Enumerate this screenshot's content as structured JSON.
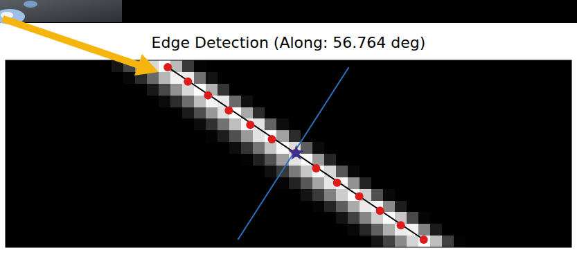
{
  "chart_data": {
    "type": "heatmap",
    "title": "Edge Detection (Along: 56.764 deg)",
    "color": "gray",
    "tick_labels": false,
    "xlim": [
      -0.5,
      47.5
    ],
    "ylim": [
      15.5,
      -0.5
    ],
    "values": [
      [
        4,
        4,
        4,
        4,
        4,
        4,
        4,
        4,
        4,
        12,
        30,
        57,
        85,
        100,
        74,
        26,
        5,
        4,
        4,
        4,
        4,
        4,
        4,
        4,
        4,
        4,
        4,
        4,
        4,
        4,
        4,
        4,
        4,
        4,
        4,
        4,
        4,
        4,
        4,
        4,
        4,
        4,
        4,
        4,
        4,
        4,
        4,
        4
      ],
      [
        4,
        4,
        4,
        4,
        4,
        4,
        4,
        4,
        4,
        4,
        7,
        20,
        43,
        73,
        95,
        93,
        47,
        11,
        4,
        4,
        4,
        4,
        4,
        4,
        4,
        4,
        4,
        4,
        4,
        4,
        4,
        4,
        4,
        4,
        4,
        4,
        4,
        4,
        4,
        4,
        4,
        4,
        4,
        4,
        4,
        4,
        4,
        4
      ],
      [
        4,
        4,
        4,
        4,
        4,
        4,
        4,
        4,
        4,
        4,
        4,
        4,
        13,
        31,
        59,
        86,
        100,
        71,
        24,
        4,
        4,
        4,
        4,
        4,
        4,
        4,
        4,
        4,
        4,
        4,
        4,
        4,
        4,
        4,
        4,
        4,
        4,
        4,
        4,
        4,
        4,
        4,
        4,
        4,
        4,
        4,
        4,
        4
      ],
      [
        4,
        4,
        4,
        4,
        4,
        4,
        4,
        4,
        4,
        4,
        4,
        4,
        4,
        8,
        21,
        45,
        75,
        96,
        92,
        44,
        10,
        4,
        4,
        4,
        4,
        4,
        4,
        4,
        4,
        4,
        4,
        4,
        4,
        4,
        4,
        4,
        4,
        4,
        4,
        4,
        4,
        4,
        4,
        4,
        4,
        4,
        4,
        4
      ],
      [
        4,
        4,
        4,
        4,
        4,
        4,
        4,
        4,
        4,
        4,
        4,
        4,
        4,
        4,
        4,
        14,
        33,
        61,
        88,
        100,
        68,
        21,
        4,
        4,
        4,
        4,
        4,
        4,
        4,
        4,
        4,
        4,
        4,
        4,
        4,
        4,
        4,
        4,
        4,
        4,
        4,
        4,
        4,
        4,
        4,
        4,
        4,
        4
      ],
      [
        4,
        4,
        4,
        4,
        4,
        4,
        4,
        4,
        4,
        4,
        4,
        4,
        4,
        4,
        4,
        4,
        8,
        22,
        47,
        76,
        97,
        90,
        41,
        9,
        4,
        4,
        4,
        4,
        4,
        4,
        4,
        4,
        4,
        4,
        4,
        4,
        4,
        4,
        4,
        4,
        4,
        4,
        4,
        4,
        4,
        4,
        4,
        4
      ],
      [
        4,
        4,
        4,
        4,
        4,
        4,
        4,
        4,
        4,
        4,
        4,
        4,
        4,
        4,
        4,
        4,
        4,
        5,
        15,
        34,
        62,
        89,
        99,
        65,
        20,
        4,
        4,
        4,
        4,
        4,
        4,
        4,
        4,
        4,
        4,
        4,
        4,
        4,
        4,
        4,
        4,
        4,
        4,
        4,
        4,
        4,
        4,
        4
      ],
      [
        4,
        4,
        4,
        4,
        4,
        4,
        4,
        4,
        4,
        4,
        4,
        4,
        4,
        4,
        4,
        4,
        4,
        4,
        4,
        9,
        24,
        48,
        78,
        97,
        87,
        39,
        8,
        4,
        4,
        4,
        4,
        4,
        4,
        4,
        4,
        4,
        4,
        4,
        4,
        4,
        4,
        4,
        4,
        4,
        4,
        4,
        4,
        4
      ],
      [
        4,
        4,
        4,
        4,
        4,
        4,
        4,
        4,
        4,
        4,
        4,
        4,
        4,
        4,
        4,
        4,
        4,
        4,
        4,
        4,
        5,
        16,
        35,
        64,
        90,
        98,
        62,
        18,
        4,
        4,
        4,
        4,
        4,
        4,
        4,
        4,
        4,
        4,
        4,
        4,
        4,
        4,
        4,
        4,
        4,
        4,
        4,
        4
      ],
      [
        4,
        4,
        4,
        4,
        4,
        4,
        4,
        4,
        4,
        4,
        4,
        4,
        4,
        4,
        4,
        4,
        4,
        4,
        4,
        4,
        4,
        4,
        10,
        25,
        50,
        79,
        98,
        85,
        36,
        7,
        4,
        4,
        4,
        4,
        4,
        4,
        4,
        4,
        4,
        4,
        4,
        4,
        4,
        4,
        4,
        4,
        4,
        4
      ],
      [
        4,
        4,
        4,
        4,
        4,
        4,
        4,
        4,
        4,
        4,
        4,
        4,
        4,
        4,
        4,
        4,
        4,
        4,
        4,
        4,
        4,
        4,
        4,
        6,
        17,
        37,
        66,
        91,
        97,
        59,
        17,
        4,
        4,
        4,
        4,
        4,
        4,
        4,
        4,
        4,
        4,
        4,
        4,
        4,
        4,
        4,
        4,
        4
      ],
      [
        4,
        4,
        4,
        4,
        4,
        4,
        4,
        4,
        4,
        4,
        4,
        4,
        4,
        4,
        4,
        4,
        4,
        4,
        4,
        4,
        4,
        4,
        4,
        4,
        4,
        11,
        26,
        52,
        81,
        98,
        82,
        34,
        7,
        4,
        4,
        4,
        4,
        4,
        4,
        4,
        4,
        4,
        4,
        4,
        4,
        4,
        4,
        4
      ],
      [
        4,
        4,
        4,
        4,
        4,
        4,
        4,
        4,
        4,
        4,
        4,
        4,
        4,
        4,
        4,
        4,
        4,
        4,
        4,
        4,
        4,
        4,
        4,
        4,
        4,
        4,
        6,
        18,
        39,
        68,
        92,
        96,
        56,
        15,
        4,
        4,
        4,
        4,
        4,
        4,
        4,
        4,
        4,
        4,
        4,
        4,
        4,
        4
      ],
      [
        4,
        4,
        4,
        4,
        4,
        4,
        4,
        4,
        4,
        4,
        4,
        4,
        4,
        4,
        4,
        4,
        4,
        4,
        4,
        4,
        4,
        4,
        4,
        4,
        4,
        4,
        4,
        4,
        11,
        28,
        54,
        82,
        99,
        79,
        31,
        6,
        4,
        4,
        4,
        4,
        4,
        4,
        4,
        4,
        4,
        4,
        4,
        4
      ],
      [
        4,
        4,
        4,
        4,
        4,
        4,
        4,
        4,
        4,
        4,
        4,
        4,
        4,
        4,
        4,
        4,
        4,
        4,
        4,
        4,
        4,
        4,
        4,
        4,
        4,
        4,
        4,
        4,
        4,
        7,
        19,
        40,
        70,
        93,
        95,
        53,
        14,
        4,
        4,
        4,
        4,
        4,
        4,
        4,
        4,
        4,
        4,
        4
      ],
      [
        4,
        4,
        4,
        4,
        4,
        4,
        4,
        4,
        4,
        4,
        4,
        4,
        4,
        4,
        4,
        4,
        4,
        4,
        4,
        4,
        4,
        4,
        4,
        4,
        4,
        4,
        4,
        4,
        4,
        4,
        4,
        12,
        29,
        56,
        84,
        99,
        76,
        28,
        5,
        4,
        4,
        4,
        4,
        4,
        4,
        4,
        4,
        4
      ]
    ],
    "series": [
      {
        "type": "line",
        "color": "#000000",
        "line_style": "solid",
        "x": [
          13.26,
          34.97
        ],
        "values": [
          0.09,
          14.85
        ]
      },
      {
        "type": "scatter",
        "color": "#dd1c1c",
        "marker": "circle",
        "x": [
          13.26,
          14.97,
          16.68,
          18.44,
          20.26,
          22.09,
          24.09,
          25.85,
          27.62,
          29.5,
          31.26,
          33.03,
          34.97
        ],
        "values": [
          0.09,
          1.32,
          2.5,
          3.79,
          5.03,
          6.26,
          7.44,
          8.74,
          9.97,
          11.15,
          12.38,
          13.62,
          14.85
        ]
      },
      {
        "type": "line",
        "color": "#2a72b8",
        "line_style": "solid",
        "x": [
          19.21,
          28.62
        ],
        "values": [
          14.85,
          0.09
        ]
      },
      {
        "type": "scatter",
        "color": "#3b2f91",
        "marker": "star",
        "x": [
          24.15
        ],
        "values": [
          7.44
        ]
      }
    ]
  }
}
